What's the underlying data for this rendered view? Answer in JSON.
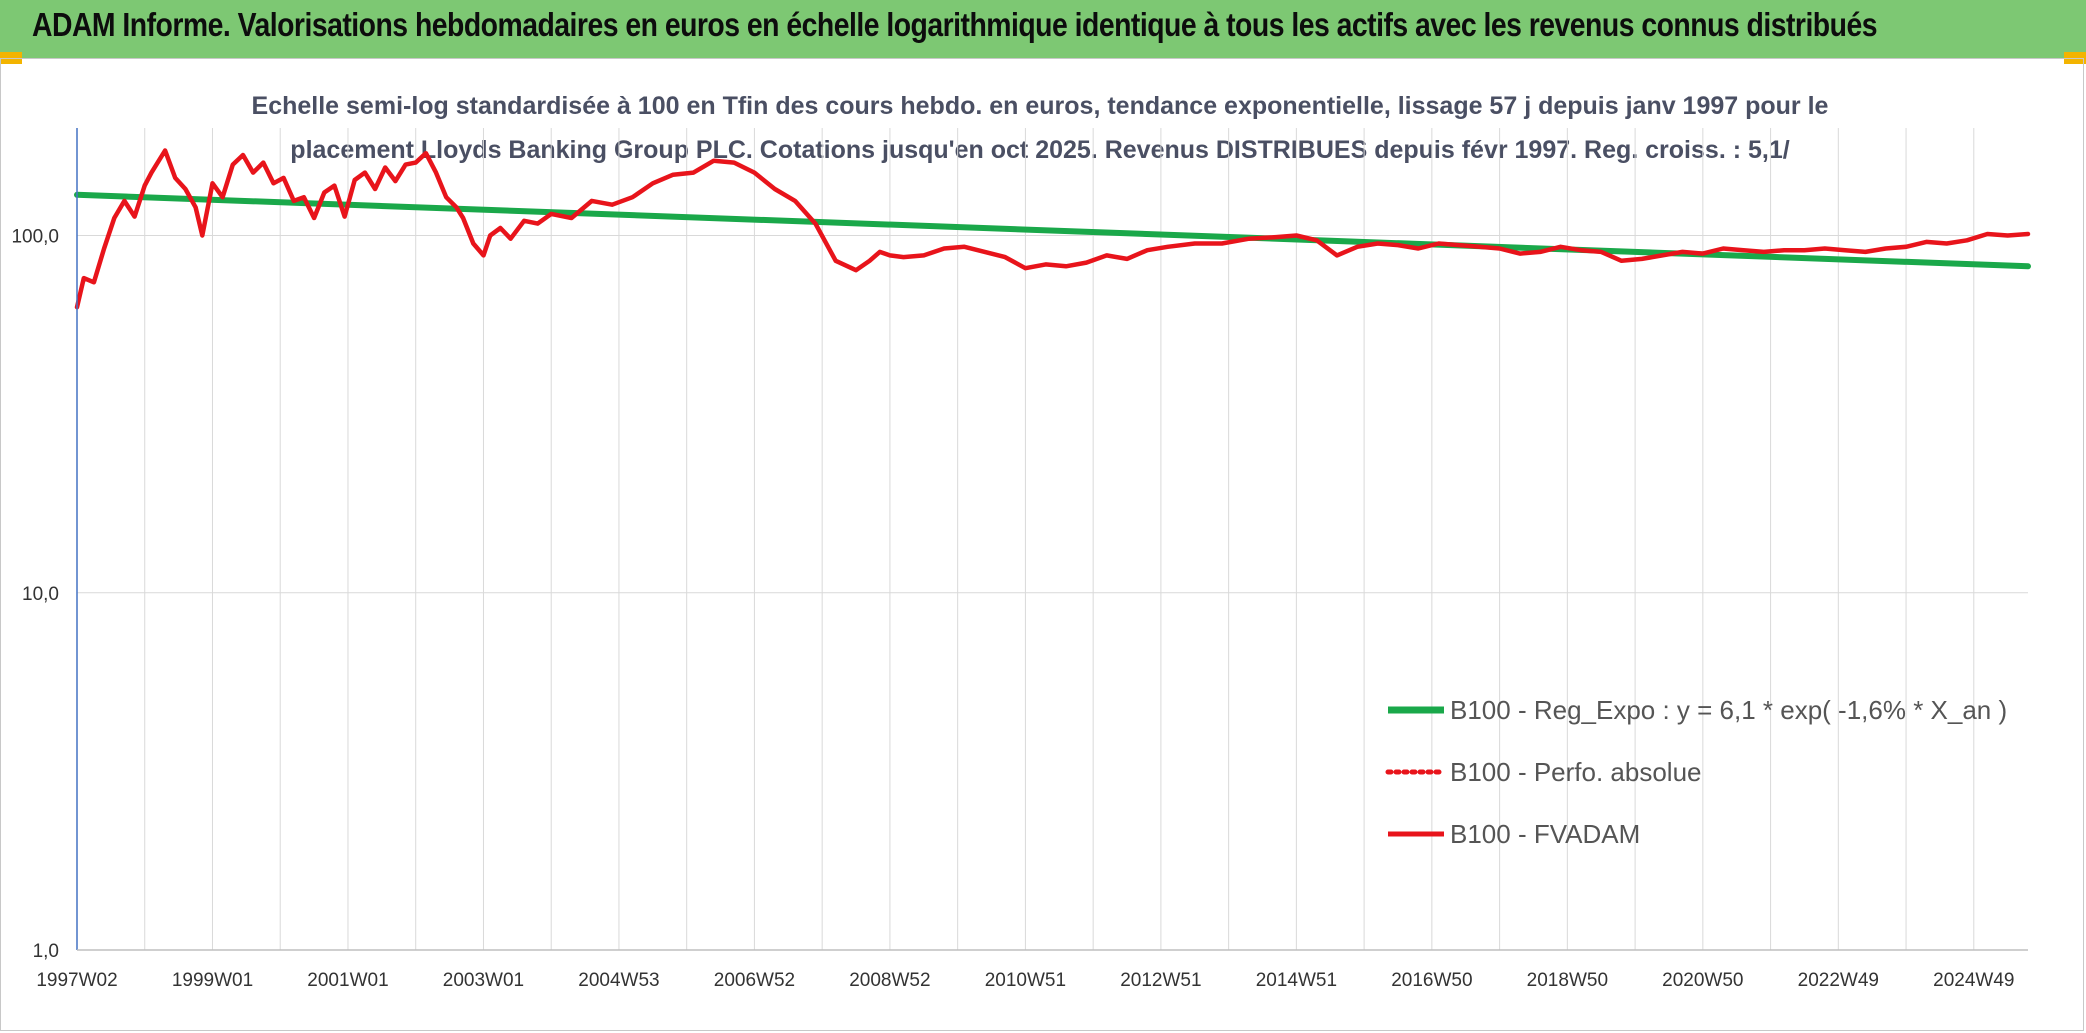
{
  "header": {
    "title": "ADAM Informe. Valorisations hebdomadaires en euros en échelle logarithmique identique à tous les actifs avec les revenus connus distribués"
  },
  "colors": {
    "banner": "#7dc873",
    "corner": "#f3b400",
    "regression": "#1aa84a",
    "fvadam": "#e8141b",
    "axis": "#4472c4",
    "grid": "#d9d9d9"
  },
  "chart_data": {
    "type": "line",
    "title_line1": "Echelle semi-log standardisée à 100 en Tfin des cours hebdo. en euros, tendance exponentielle, lissage 57 j depuis janv 1997 pour le",
    "title_line2": "placement Lloyds Banking Group PLC. Cotations jusqu'en oct 2025. Revenus DISTRIBUES depuis févr 1997. Reg. croiss. : 5,1/",
    "y_scale": "log",
    "ylim": [
      1,
      200
    ],
    "y_ticks": [
      {
        "value": 100,
        "label": "100,0"
      },
      {
        "value": 10,
        "label": "10,0"
      },
      {
        "value": 1,
        "label": "1,0"
      }
    ],
    "xlim": [
      1997.0,
      2025.8
    ],
    "x_ticks": [
      {
        "year": 1997.0,
        "label": "1997W02"
      },
      {
        "year": 1999.0,
        "label": "1999W01"
      },
      {
        "year": 2001.0,
        "label": "2001W01"
      },
      {
        "year": 2003.0,
        "label": "2003W01"
      },
      {
        "year": 2005.0,
        "label": "2004W53"
      },
      {
        "year": 2007.0,
        "label": "2006W52"
      },
      {
        "year": 2009.0,
        "label": "2008W52"
      },
      {
        "year": 2011.0,
        "label": "2010W51"
      },
      {
        "year": 2013.0,
        "label": "2012W51"
      },
      {
        "year": 2015.0,
        "label": "2014W51"
      },
      {
        "year": 2017.0,
        "label": "2016W50"
      },
      {
        "year": 2019.0,
        "label": "2018W50"
      },
      {
        "year": 2021.0,
        "label": "2020W50"
      },
      {
        "year": 2023.0,
        "label": "2022W49"
      },
      {
        "year": 2025.0,
        "label": "2024W49"
      }
    ],
    "minor_grid_years": [
      1998.0,
      2000.0,
      2002.0,
      2004.0,
      2006.0,
      2008.0,
      2010.0,
      2012.0,
      2014.0,
      2016.0,
      2018.0,
      2020.0,
      2022.0,
      2024.0
    ],
    "series": [
      {
        "name": "B100 - Reg_Expo : y = 6,1 * exp( -1,6% *  X_an )",
        "style": "solid-thick",
        "color": "#1aa84a",
        "x": [
          1997.0,
          2025.8
        ],
        "y": [
          130,
          82
        ]
      },
      {
        "name": "B100 - Perfo. absolue",
        "style": "dotted",
        "color": "#e8141b",
        "x": [],
        "y": []
      },
      {
        "name": "B100 - FVADAM",
        "style": "solid",
        "color": "#e8141b",
        "x": [
          1997.0,
          1997.1,
          1997.25,
          1997.4,
          1997.55,
          1997.7,
          1997.85,
          1998.0,
          1998.1,
          1998.3,
          1998.45,
          1998.6,
          1998.75,
          1998.85,
          1999.0,
          1999.15,
          1999.3,
          1999.45,
          1999.6,
          1999.75,
          1999.9,
          2000.05,
          2000.2,
          2000.35,
          2000.5,
          2000.65,
          2000.8,
          2000.95,
          2001.1,
          2001.25,
          2001.4,
          2001.55,
          2001.7,
          2001.85,
          2002.0,
          2002.15,
          2002.3,
          2002.45,
          2002.6,
          2002.7,
          2002.85,
          2003.0,
          2003.1,
          2003.25,
          2003.4,
          2003.6,
          2003.8,
          2004.0,
          2004.3,
          2004.6,
          2004.9,
          2005.2,
          2005.5,
          2005.8,
          2006.1,
          2006.4,
          2006.7,
          2007.0,
          2007.3,
          2007.6,
          2007.9,
          2008.2,
          2008.5,
          2008.7,
          2008.85,
          2009.0,
          2009.2,
          2009.5,
          2009.8,
          2010.1,
          2010.4,
          2010.7,
          2011.0,
          2011.3,
          2011.6,
          2011.9,
          2012.2,
          2012.5,
          2012.8,
          2013.1,
          2013.5,
          2013.9,
          2014.3,
          2014.7,
          2015.0,
          2015.3,
          2015.6,
          2015.9,
          2016.2,
          2016.5,
          2016.8,
          2017.1,
          2017.4,
          2017.7,
          2018.0,
          2018.3,
          2018.6,
          2018.9,
          2019.2,
          2019.5,
          2019.8,
          2020.1,
          2020.4,
          2020.7,
          2021.0,
          2021.3,
          2021.6,
          2021.9,
          2022.2,
          2022.5,
          2022.8,
          2023.1,
          2023.4,
          2023.7,
          2024.0,
          2024.3,
          2024.6,
          2024.9,
          2025.2,
          2025.5,
          2025.8
        ],
        "y": [
          63,
          76,
          74,
          92,
          112,
          125,
          113,
          138,
          150,
          173,
          145,
          135,
          120,
          100,
          140,
          128,
          158,
          168,
          150,
          160,
          140,
          145,
          125,
          128,
          112,
          132,
          138,
          113,
          143,
          150,
          135,
          155,
          142,
          158,
          160,
          170,
          150,
          128,
          120,
          112,
          95,
          88,
          100,
          105,
          98,
          110,
          108,
          115,
          112,
          125,
          122,
          128,
          140,
          148,
          150,
          162,
          160,
          150,
          135,
          125,
          108,
          85,
          80,
          85,
          90,
          88,
          87,
          88,
          92,
          93,
          90,
          87,
          81,
          83,
          82,
          84,
          88,
          86,
          91,
          93,
          95,
          95,
          98,
          99,
          100,
          97,
          88,
          93,
          95,
          94,
          92,
          95,
          94,
          93,
          92,
          89,
          90,
          93,
          91,
          90,
          85,
          86,
          88,
          90,
          89,
          92,
          91,
          90,
          91,
          91,
          92,
          91,
          90,
          92,
          93,
          96,
          95,
          97,
          101,
          100,
          101
        ]
      }
    ],
    "legend_position": "bottom-right"
  }
}
